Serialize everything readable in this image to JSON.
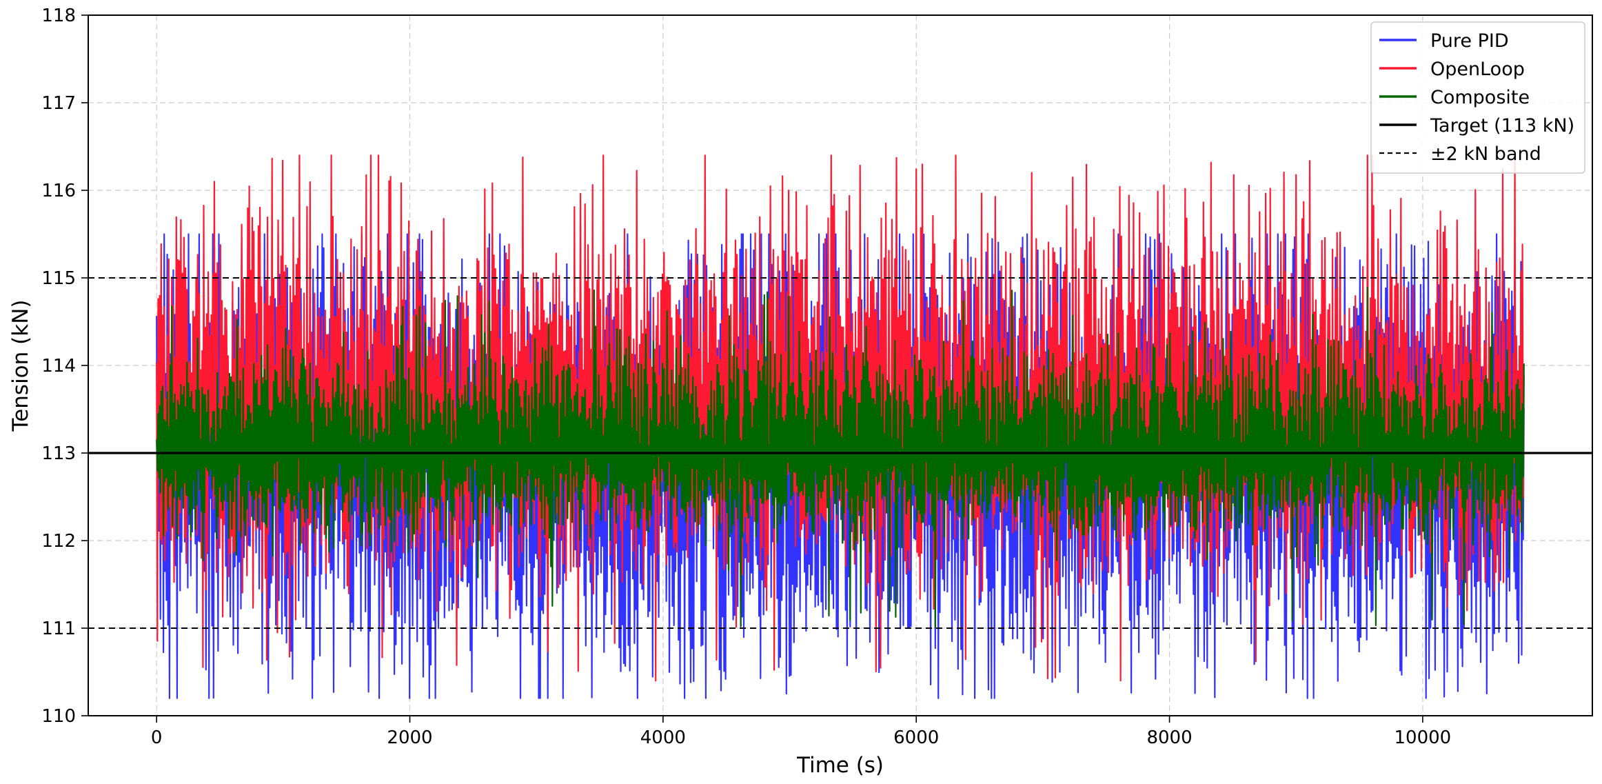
{
  "chart_data": {
    "type": "line",
    "title": "",
    "xlabel": "Time (s)",
    "ylabel": "Tension (kN)",
    "xlim": [
      -540,
      11340
    ],
    "ylim": [
      110,
      118
    ],
    "x_ticks": [
      0,
      2000,
      4000,
      6000,
      8000,
      10000
    ],
    "y_ticks": [
      110,
      111,
      112,
      113,
      114,
      115,
      116,
      117,
      118
    ],
    "x_range": [
      0,
      10800
    ],
    "grid": true,
    "legend_position": "top-right",
    "series": [
      {
        "name": "Pure PID",
        "color": "#3333ff",
        "style": "solid",
        "center": 113.0,
        "upper_typical": 115.0,
        "lower_typical": 110.9,
        "max": 115.5,
        "min": 110.2
      },
      {
        "name": "OpenLoop",
        "color": "#ff1a33",
        "style": "solid",
        "center": 113.4,
        "upper_typical": 115.3,
        "lower_typical": 111.8,
        "max": 116.4,
        "min": 110.4
      },
      {
        "name": "Composite",
        "color": "#006600",
        "style": "solid",
        "center": 113.0,
        "upper_typical": 114.0,
        "lower_typical": 112.2,
        "max": 114.9,
        "min": 111.0
      },
      {
        "name": "Target (113 kN)",
        "color": "#000000",
        "style": "solid",
        "value": 113
      },
      {
        "name": "±2 kN band",
        "color": "#000000",
        "style": "dashed",
        "values": [
          111,
          115
        ]
      }
    ],
    "x_tick_labels": [
      "0",
      "2000",
      "4000",
      "6000",
      "8000",
      "10000"
    ],
    "y_tick_labels": [
      "110",
      "111",
      "112",
      "113",
      "114",
      "115",
      "116",
      "117",
      "118"
    ]
  }
}
